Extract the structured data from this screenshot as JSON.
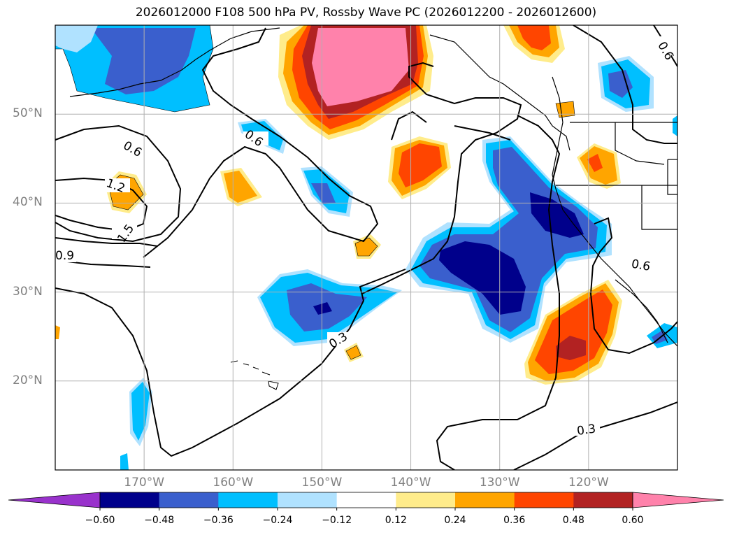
{
  "title": "2026012000 F108 500 hPa PV, Rossby Wave PC (2026012200 - 2026012600)",
  "map": {
    "projection": "equirectangular",
    "lon_range": [
      -180,
      -110
    ],
    "lat_range": [
      10,
      60
    ],
    "gridlines": true,
    "lat_ticks": [
      {
        "value": 20,
        "label": "20°N"
      },
      {
        "value": 30,
        "label": "30°N"
      },
      {
        "value": 40,
        "label": "40°N"
      },
      {
        "value": 50,
        "label": "50°N"
      }
    ],
    "lon_ticks": [
      {
        "value": -170,
        "label": "170°W"
      },
      {
        "value": -160,
        "label": "160°W"
      },
      {
        "value": -150,
        "label": "150°W"
      },
      {
        "value": -140,
        "label": "140°W"
      },
      {
        "value": -130,
        "label": "130°W"
      },
      {
        "value": -120,
        "label": "120°W"
      }
    ],
    "contour_labels": [
      "0.3",
      "0.3",
      "0.6",
      "0.6",
      "0.6",
      "0.6",
      "0.9",
      "1.2",
      "1.5"
    ]
  },
  "colorbar": {
    "orientation": "horizontal",
    "extend": "both",
    "ticks": [
      "−0.60",
      "−0.48",
      "−0.36",
      "−0.24",
      "−0.12",
      "0.12",
      "0.24",
      "0.36",
      "0.48",
      "0.60"
    ],
    "colors": [
      "#9932cc",
      "#00008b",
      "#3a5fcd",
      "#00bfff",
      "#b0e2ff",
      "#ffffff",
      "#ffec8b",
      "#ffa500",
      "#ff4500",
      "#b22222",
      "#ff82ab"
    ]
  }
}
